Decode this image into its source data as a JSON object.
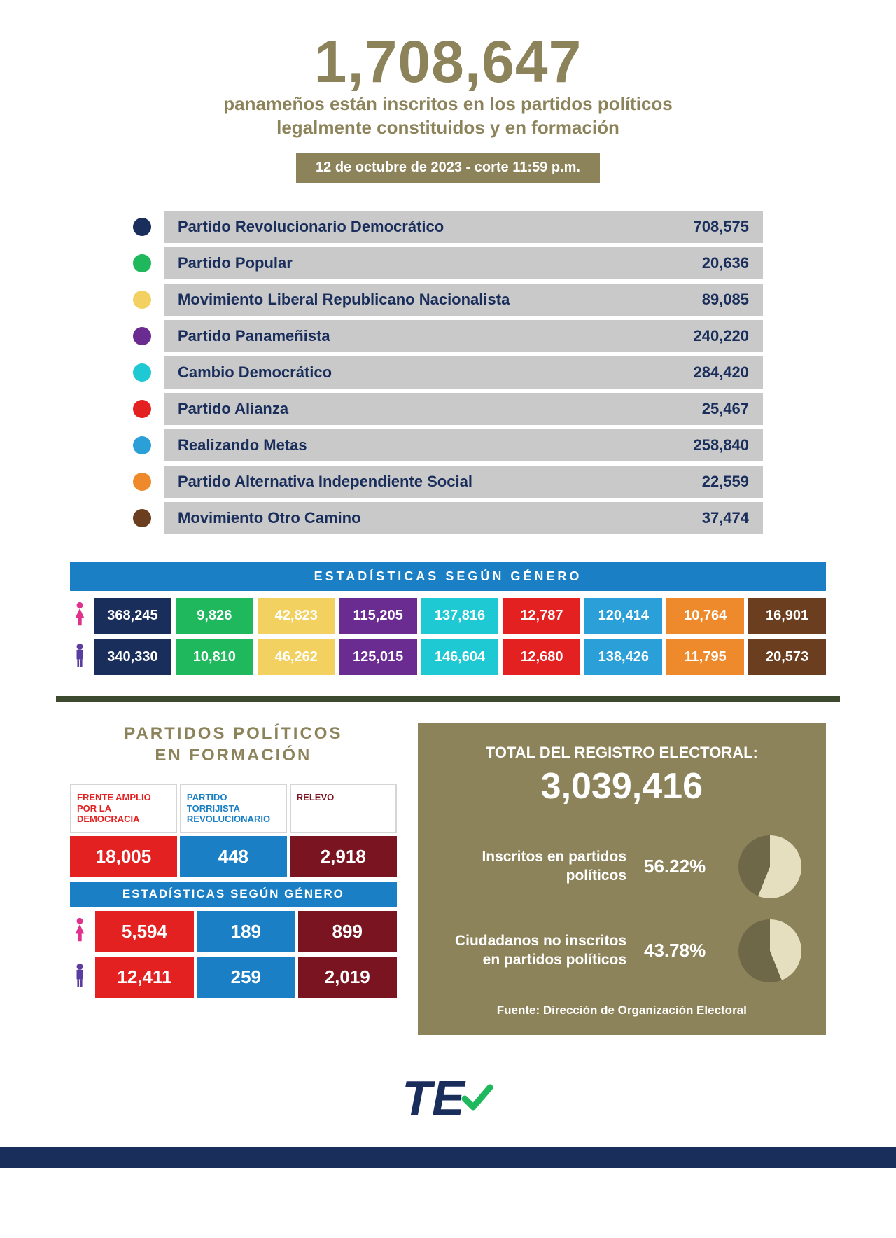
{
  "colors": {
    "olive": "#8d835a",
    "navy": "#1a2e5c",
    "rowBg": "#c9c9c9",
    "partyText": "#1a2e5c",
    "genderHeader": "#1a7fc4",
    "darkOlive": "#4a4530",
    "female": "#e0318b",
    "male": "#5a3d9e",
    "divider": "#3e4a2f",
    "footerBar": "#1a2e5c"
  },
  "hero": {
    "number": "1,708,647",
    "line1": "panameños están inscritos en los partidos políticos",
    "line2": "legalmente constituidos y en formación",
    "date": "12 de octubre de 2023 - corte 11:59 p.m."
  },
  "parties": [
    {
      "name": "Partido Revolucionario Democrático",
      "value": "708,575",
      "color": "#1a2e5c"
    },
    {
      "name": "Partido Popular",
      "value": "20,636",
      "color": "#1fb85c"
    },
    {
      "name": "Movimiento Liberal Republicano Nacionalista",
      "value": "89,085",
      "color": "#f2d161"
    },
    {
      "name": "Partido Panameñista",
      "value": "240,220",
      "color": "#6a2c91"
    },
    {
      "name": "Cambio Democrático",
      "value": "284,420",
      "color": "#1fc9d4"
    },
    {
      "name": "Partido Alianza",
      "value": "25,467",
      "color": "#e32121"
    },
    {
      "name": "Realizando Metas",
      "value": "258,840",
      "color": "#2a9fd8"
    },
    {
      "name": "Partido Alternativa Independiente Social",
      "value": "22,559",
      "color": "#ef8a2c"
    },
    {
      "name": "Movimiento Otro Camino",
      "value": "37,474",
      "color": "#6b3e1f"
    }
  ],
  "genderSection": {
    "title": "ESTADÍSTICAS SEGÚN GÉNERO",
    "cellColors": [
      "#1a2e5c",
      "#1fb85c",
      "#f2d161",
      "#6a2c91",
      "#1fc9d4",
      "#e32121",
      "#2a9fd8",
      "#ef8a2c",
      "#6b3e1f"
    ],
    "female": [
      "368,245",
      "9,826",
      "42,823",
      "115,205",
      "137,816",
      "12,787",
      "120,414",
      "10,764",
      "16,901"
    ],
    "male": [
      "340,330",
      "10,810",
      "46,262",
      "125,015",
      "146,604",
      "12,680",
      "138,426",
      "11,795",
      "20,573"
    ]
  },
  "formation": {
    "title1": "PARTIDOS POLÍTICOS",
    "title2": "EN FORMACIÓN",
    "headers": [
      "FRENTE AMPLIO POR LA DEMOCRACIA",
      "PARTIDO TORRIJISTA REVOLUCIONARIO",
      "RELEVO"
    ],
    "headerColors": [
      "#e32121",
      "#1a7fc4",
      "#7a1420"
    ],
    "totals": [
      "18,005",
      "448",
      "2,918"
    ],
    "genderTitle": "ESTADÍSTICAS SEGÚN GÉNERO",
    "female": [
      "5,594",
      "189",
      "899"
    ],
    "male": [
      "12,411",
      "259",
      "2,019"
    ]
  },
  "registry": {
    "label": "TOTAL DEL REGISTRO ELECTORAL:",
    "total": "3,039,416",
    "row1Label": "Inscritos en partidos políticos",
    "row1Pct": "56.22%",
    "row1Deg": 202,
    "row2Label": "Ciudadanos no inscritos en partidos políticos",
    "row2Pct": "43.78%",
    "row2Deg": 158,
    "pieLight": "#e5dfbf",
    "pieDark": "#6f6848",
    "source": "Fuente: Dirección de Organización Electoral"
  },
  "logo": {
    "t": "T",
    "e": "E"
  }
}
